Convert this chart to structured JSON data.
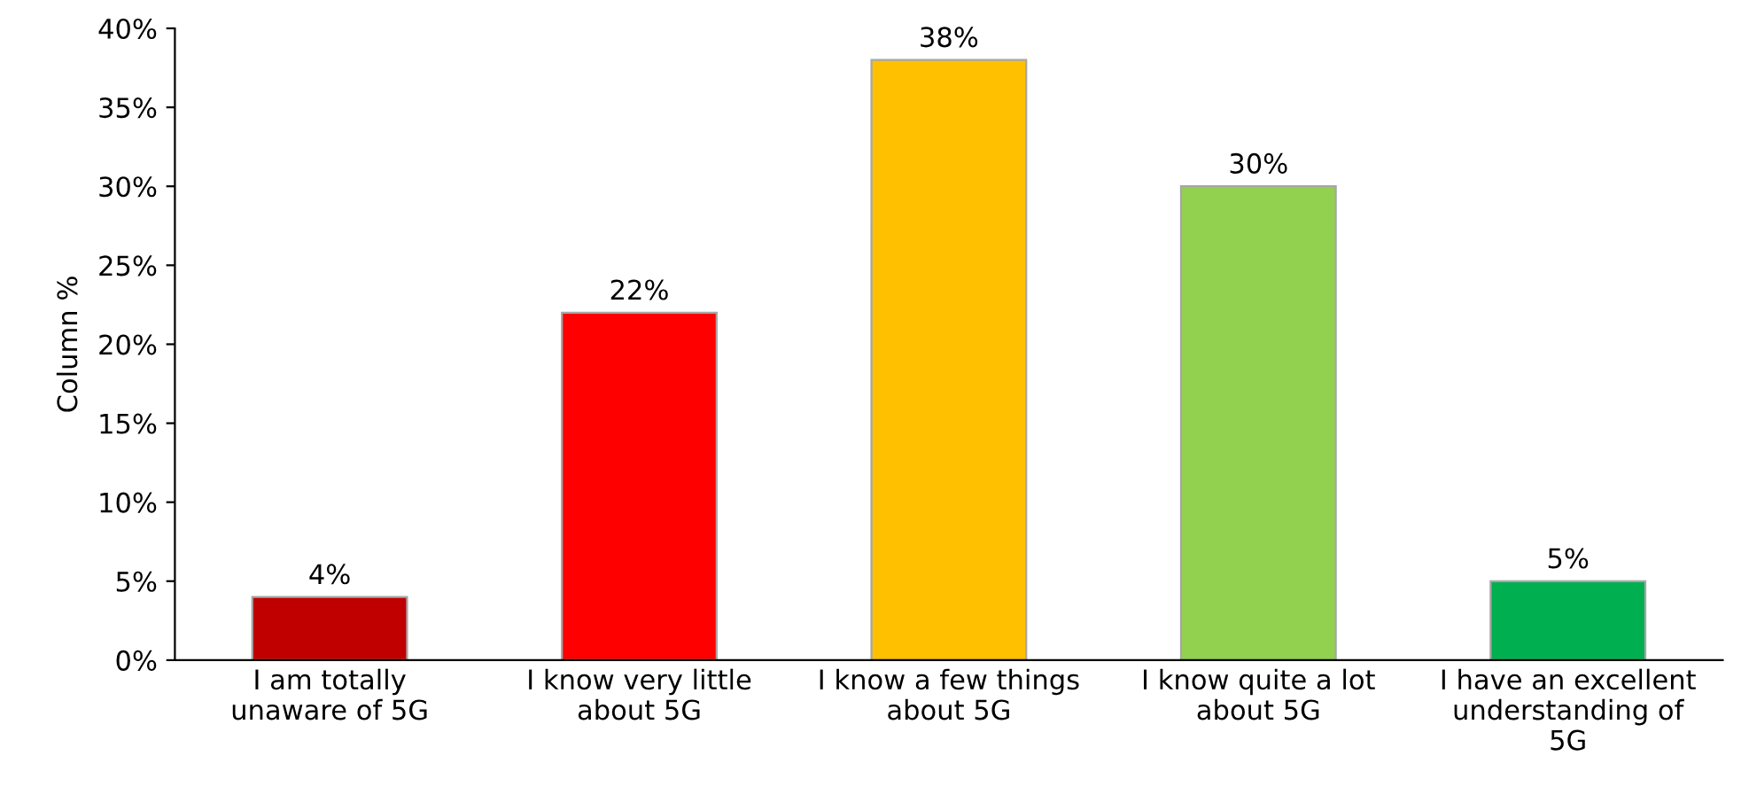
{
  "chart_data": {
    "type": "bar",
    "ylabel": "Column %",
    "categories": [
      "I am totally\nunaware of 5G",
      "I know very little\nabout 5G",
      "I know a few things\nabout 5G",
      "I know quite a lot\nabout 5G",
      "I have an excellent\nunderstanding of\n5G"
    ],
    "values": [
      4,
      22,
      38,
      30,
      5
    ],
    "colors": [
      "#c00000",
      "#ff0000",
      "#ffc000",
      "#92d050",
      "#00b050"
    ],
    "value_labels": [
      "4%",
      "22%",
      "38%",
      "30%",
      "5%"
    ],
    "ylim": [
      0,
      40
    ],
    "yticks": [
      {
        "value": 0,
        "label": "0%"
      },
      {
        "value": 5,
        "label": "5%"
      },
      {
        "value": 10,
        "label": "10%"
      },
      {
        "value": 15,
        "label": "15%"
      },
      {
        "value": 20,
        "label": "20%"
      },
      {
        "value": 25,
        "label": "25%"
      },
      {
        "value": 30,
        "label": "30%"
      },
      {
        "value": 35,
        "label": "35%"
      },
      {
        "value": 40,
        "label": "40%"
      }
    ],
    "grid": false
  }
}
